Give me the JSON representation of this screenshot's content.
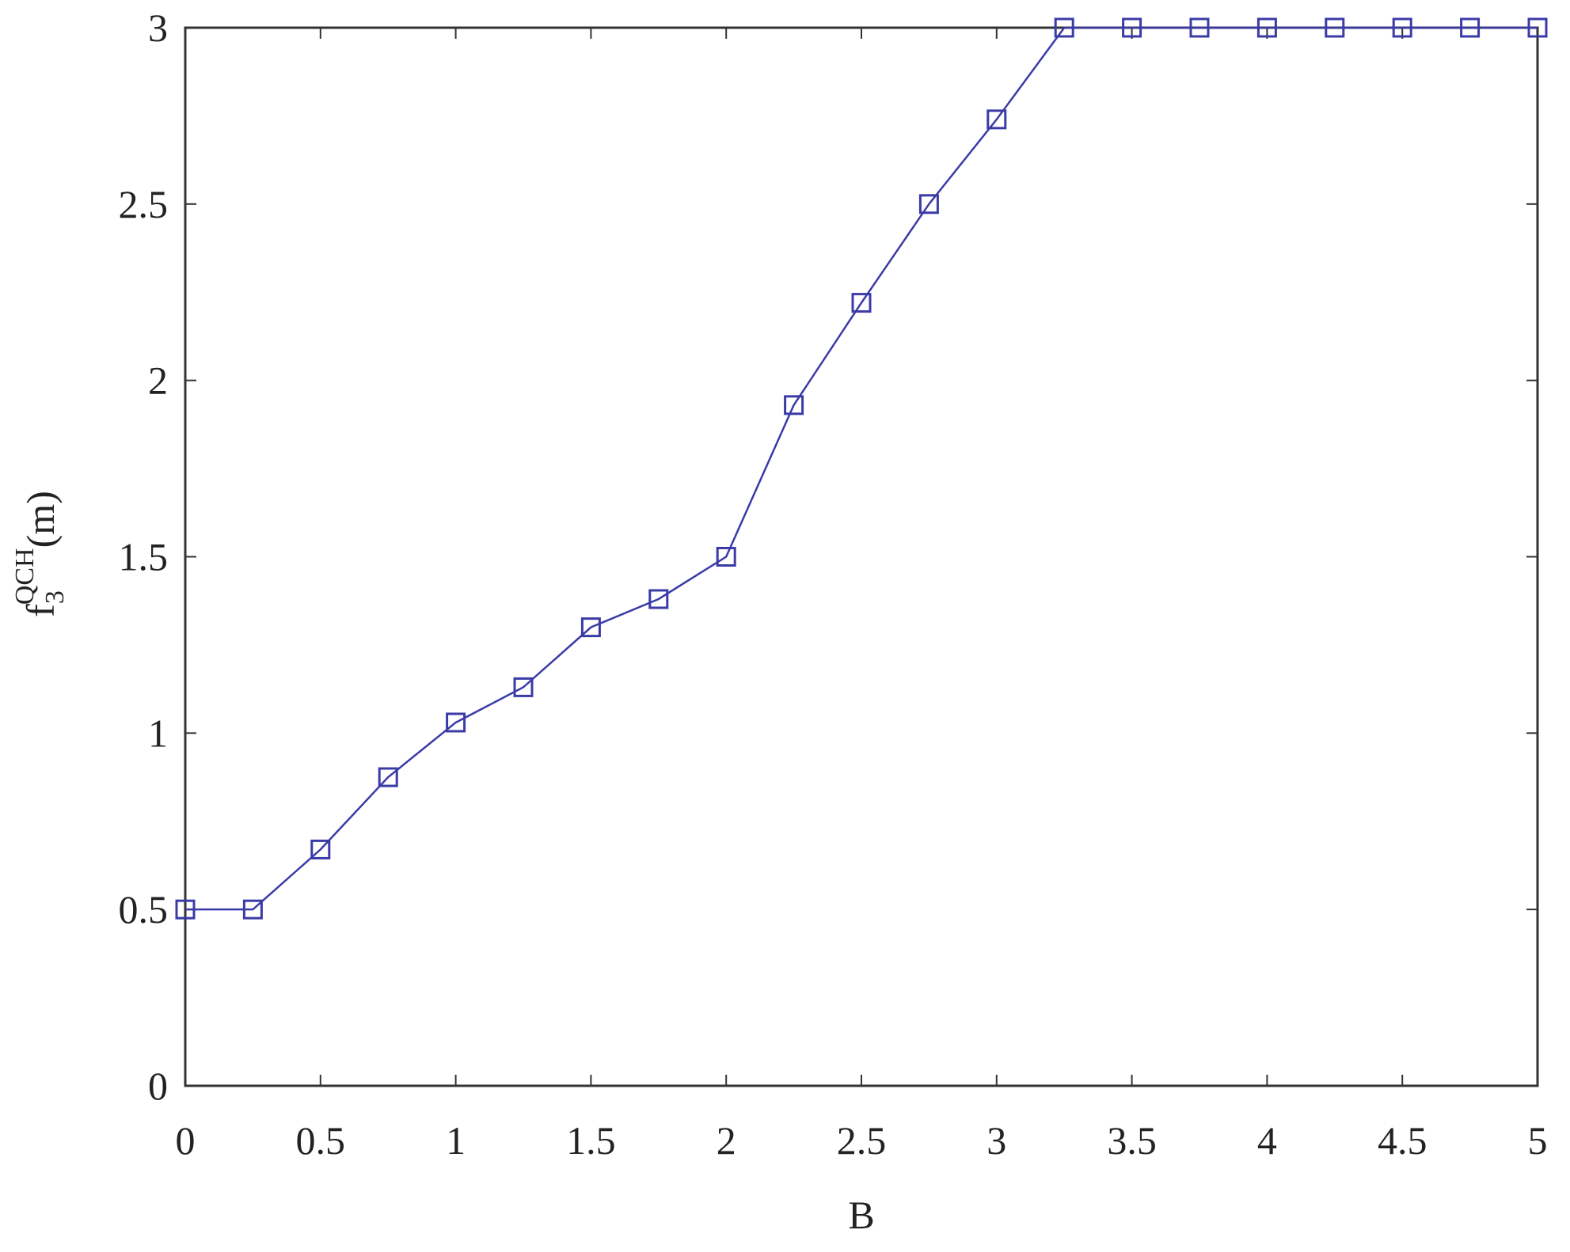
{
  "chart_data": {
    "type": "line",
    "x_label": "B",
    "y_label": {
      "main": "f",
      "subscript": "3",
      "superscript": "QCH",
      "unit": "(m)"
    },
    "x": [
      0,
      0.25,
      0.5,
      0.75,
      1,
      1.25,
      1.5,
      1.75,
      2,
      2.25,
      2.5,
      2.75,
      3,
      3.25,
      3.5,
      3.75,
      4,
      4.25,
      4.5,
      4.75,
      5
    ],
    "series": [
      {
        "color": "#3b3ba8",
        "values": [
          0.5,
          0.5,
          0.67,
          0.875,
          1.03,
          1.13,
          1.3,
          1.38,
          1.5,
          1.93,
          2.22,
          2.5,
          2.74,
          3,
          3,
          3,
          3,
          3,
          3,
          3,
          3
        ]
      }
    ],
    "xlim": [
      0,
      5
    ],
    "ylim": [
      0,
      3
    ],
    "xticks": [
      0,
      0.5,
      1,
      1.5,
      2,
      2.5,
      3,
      3.5,
      4,
      4.5,
      5
    ],
    "yticks": [
      0,
      0.5,
      1,
      1.5,
      2,
      2.5,
      3
    ],
    "marker": "square"
  }
}
